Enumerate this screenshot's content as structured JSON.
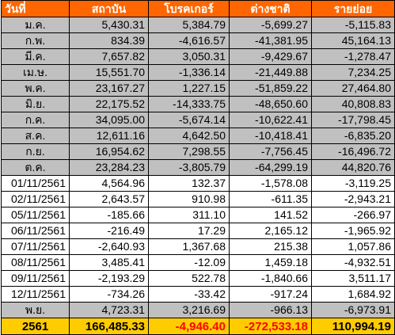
{
  "colors": {
    "header_bg": "#ff6600",
    "header_text": "#ffffff",
    "gray_row": "#c0c0c0",
    "total_bg": "#ffcc00",
    "negative_text": "#ff0000"
  },
  "headers": [
    "วันที่",
    "สถาบัน",
    "โบรคเกอร์",
    "ต่างชาติ",
    "รายย่อย"
  ],
  "rows": [
    {
      "style": "gray",
      "label": "ม.ค.",
      "values": [
        "5,430.31",
        "5,384.79",
        "-5,699.27",
        "-5,115.83"
      ]
    },
    {
      "style": "gray",
      "label": "ก.พ.",
      "values": [
        "834.39",
        "-4,616.57",
        "-41,381.95",
        "45,164.13"
      ]
    },
    {
      "style": "gray",
      "label": "มี.ค.",
      "values": [
        "7,657.82",
        "3,050.31",
        "-9,429.67",
        "-1,278.47"
      ]
    },
    {
      "style": "gray",
      "label": "เม.ษ.",
      "values": [
        "15,551.70",
        "-1,336.14",
        "-21,449.88",
        "7,234.25"
      ]
    },
    {
      "style": "gray",
      "label": "พ.ค.",
      "values": [
        "23,167.27",
        "1,227.15",
        "-51,859.22",
        "27,464.80"
      ]
    },
    {
      "style": "gray",
      "label": "มิ.ย.",
      "values": [
        "22,175.52",
        "-14,333.75",
        "-48,650.60",
        "40,808.83"
      ]
    },
    {
      "style": "gray",
      "label": "ก.ค.",
      "values": [
        "34,095.00",
        "-5,674.14",
        "-10,622.41",
        "-17,798.45"
      ]
    },
    {
      "style": "gray",
      "label": "ส.ค.",
      "values": [
        "12,611.16",
        "4,642.50",
        "-10,418.41",
        "-6,835.20"
      ]
    },
    {
      "style": "gray",
      "label": "ก.ย.",
      "values": [
        "16,954.62",
        "7,298.55",
        "-7,756.45",
        "-16,496.72"
      ]
    },
    {
      "style": "gray",
      "label": "ต.ค.",
      "values": [
        "23,284.23",
        "-3,805.79",
        "-64,299.19",
        "44,820.76"
      ]
    },
    {
      "style": "white",
      "label": "01/11/2561",
      "values": [
        "4,564.96",
        "132.37",
        "-1,578.08",
        "-3,119.25"
      ]
    },
    {
      "style": "white",
      "label": "02/11/2561",
      "values": [
        "2,643.57",
        "910.98",
        "-611.35",
        "-2,943.21"
      ]
    },
    {
      "style": "white",
      "label": "05/11/2561",
      "values": [
        "-185.66",
        "311.10",
        "141.52",
        "-266.97"
      ]
    },
    {
      "style": "white",
      "label": "06/11/2561",
      "values": [
        "-216.49",
        "17.29",
        "2,165.12",
        "-1,965.92"
      ]
    },
    {
      "style": "white",
      "label": "07/11/2561",
      "values": [
        "-2,640.93",
        "1,367.68",
        "215.38",
        "1,057.86"
      ]
    },
    {
      "style": "white",
      "label": "08/11/2561",
      "values": [
        "3,485.41",
        "-12.09",
        "1,459.18",
        "-4,932.51"
      ]
    },
    {
      "style": "white",
      "label": "09/11/2561",
      "values": [
        "-2,193.29",
        "522.78",
        "-1,840.66",
        "3,511.17"
      ]
    },
    {
      "style": "white",
      "label": "12/11/2561",
      "values": [
        "-734.26",
        "-33.42",
        "-917.24",
        "1,684.92"
      ]
    },
    {
      "style": "gray",
      "label": "พ.ย.",
      "values": [
        "4,723.31",
        "3,216.69",
        "-966.13",
        "-6,973.91"
      ]
    }
  ],
  "total": {
    "label": "2561",
    "values": [
      "166,485.33",
      "-4,946.40",
      "-272,533.18",
      "110,994.19"
    ]
  }
}
